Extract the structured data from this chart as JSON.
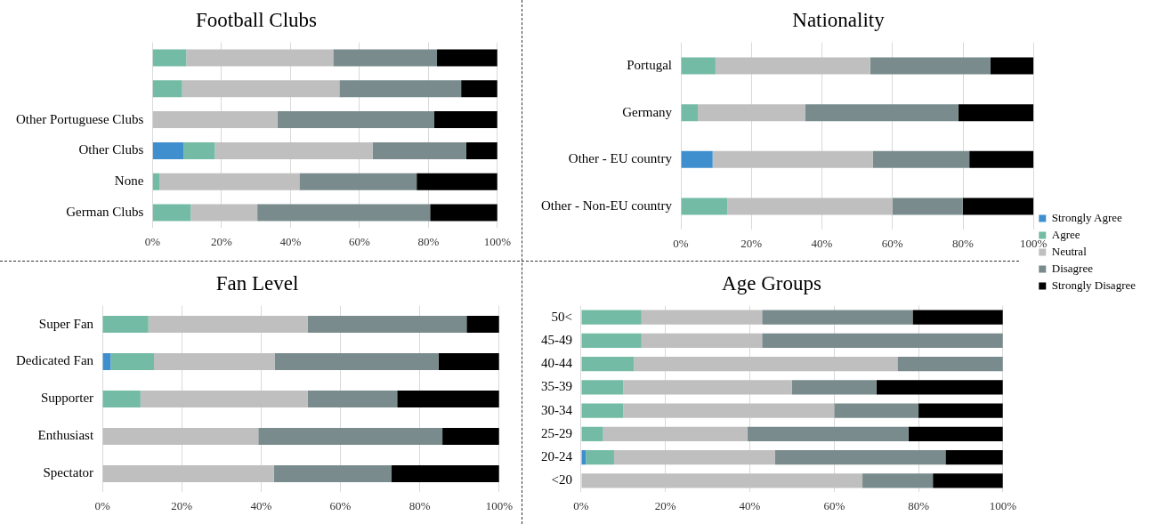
{
  "chart_data": [
    {
      "type": "bar",
      "title": "Football Clubs",
      "orientation": "horizontal",
      "stacked": true,
      "grid": "x",
      "legend": false,
      "categories": [
        null,
        null,
        "Other Portuguese Clubs",
        "Other Clubs",
        "None",
        "German Clubs"
      ],
      "xlim": [
        0,
        100
      ],
      "xticks": [
        {
          "value": 0,
          "label": "0%"
        },
        {
          "value": 20,
          "label": "20%"
        },
        {
          "value": 40,
          "label": "40%"
        },
        {
          "value": 60,
          "label": "60%"
        },
        {
          "value": 80,
          "label": "80%"
        },
        {
          "value": 100,
          "label": "100%"
        }
      ],
      "series": [
        {
          "color": "#3f8fcf",
          "values": [
            0,
            0,
            0,
            9.0,
            0,
            0
          ]
        },
        {
          "color": "#74bba5",
          "values": [
            9.8,
            8.6,
            0,
            9.1,
            2.1,
            11.1
          ]
        },
        {
          "color": "#bfbfbf",
          "values": [
            42.6,
            45.6,
            36.2,
            45.7,
            40.5,
            19.3
          ]
        },
        {
          "color": "#798b8c",
          "values": [
            30.1,
            35.3,
            45.4,
            27.2,
            34.0,
            50.1
          ]
        },
        {
          "color": "#000000",
          "values": [
            17.5,
            10.5,
            18.4,
            9.0,
            23.4,
            19.5
          ]
        }
      ]
    },
    {
      "type": "bar",
      "title": "Nationality",
      "orientation": "horizontal",
      "stacked": true,
      "grid": "x",
      "legend": "bottom right",
      "categories": [
        "Portugal",
        "Germany",
        "Other - EU country",
        "Other - Non-EU country"
      ],
      "xlim": [
        0,
        100
      ],
      "xticks": [
        {
          "value": 0,
          "label": "0%"
        },
        {
          "value": 20,
          "label": "20%"
        },
        {
          "value": 40,
          "label": "40%"
        },
        {
          "value": 60,
          "label": "60%"
        },
        {
          "value": 80,
          "label": "80%"
        },
        {
          "value": 100,
          "label": "100%"
        }
      ],
      "series": [
        {
          "name": "Strongly Agree",
          "color": "#3f8fcf",
          "values": [
            0,
            0,
            9.0,
            0
          ]
        },
        {
          "name": "Agree",
          "color": "#74bba5",
          "values": [
            9.8,
            4.8,
            0,
            13.2
          ]
        },
        {
          "name": "Neutral",
          "color": "#bfbfbf",
          "values": [
            43.9,
            30.4,
            45.4,
            46.8
          ]
        },
        {
          "name": "Disagree",
          "color": "#798b8c",
          "values": [
            34.1,
            43.5,
            27.4,
            19.9
          ]
        },
        {
          "name": "Strongly Disagree",
          "color": "#000000",
          "values": [
            12.2,
            21.3,
            18.2,
            20.1
          ]
        }
      ]
    },
    {
      "type": "bar",
      "title": "Fan Level",
      "orientation": "horizontal",
      "stacked": true,
      "grid": "x",
      "legend": false,
      "categories": [
        "Super Fan",
        "Dedicated Fan",
        "Supporter",
        "Enthusiast",
        "Spectator"
      ],
      "xlim": [
        0,
        100
      ],
      "xticks": [
        {
          "value": 0,
          "label": "0%"
        },
        {
          "value": 20,
          "label": "20%"
        },
        {
          "value": 40,
          "label": "40%"
        },
        {
          "value": 60,
          "label": "60%"
        },
        {
          "value": 80,
          "label": "80%"
        },
        {
          "value": 100,
          "label": "100%"
        }
      ],
      "series": [
        {
          "color": "#3f8fcf",
          "values": [
            0,
            2.1,
            0,
            0,
            0
          ]
        },
        {
          "color": "#74bba5",
          "values": [
            11.6,
            10.9,
            9.6,
            0,
            0
          ]
        },
        {
          "color": "#bfbfbf",
          "values": [
            40.2,
            30.4,
            42.2,
            39.3,
            43.2
          ]
        },
        {
          "color": "#798b8c",
          "values": [
            40.0,
            41.3,
            22.5,
            46.4,
            29.7
          ]
        },
        {
          "color": "#000000",
          "values": [
            8.2,
            15.3,
            25.7,
            14.3,
            27.1
          ]
        }
      ]
    },
    {
      "type": "bar",
      "title": "Age Groups",
      "orientation": "horizontal",
      "stacked": true,
      "grid": "x",
      "legend": false,
      "categories": [
        "50<",
        "45-49",
        "40-44",
        "35-39",
        "30-34",
        "25-29",
        "20-24",
        "<20"
      ],
      "xlim": [
        0,
        100
      ],
      "xticks": [
        {
          "value": 0,
          "label": "0%"
        },
        {
          "value": 20,
          "label": "20%"
        },
        {
          "value": 40,
          "label": "40%"
        },
        {
          "value": 60,
          "label": "60%"
        },
        {
          "value": 80,
          "label": "80%"
        },
        {
          "value": 100,
          "label": "100%"
        }
      ],
      "series": [
        {
          "color": "#3f8fcf",
          "values": [
            0,
            0,
            0,
            0,
            0,
            0,
            1.1,
            0
          ]
        },
        {
          "color": "#74bba5",
          "values": [
            14.3,
            14.3,
            12.5,
            10,
            10,
            5.2,
            6.7,
            0
          ]
        },
        {
          "color": "#bfbfbf",
          "values": [
            28.6,
            28.6,
            62.5,
            40,
            50,
            34.2,
            38.2,
            66.7
          ]
        },
        {
          "color": "#798b8c",
          "values": [
            35.7,
            57.1,
            25,
            20,
            20,
            38.2,
            40.4,
            16.7
          ]
        },
        {
          "color": "#000000",
          "values": [
            21.4,
            0,
            0,
            30,
            20,
            22.4,
            13.6,
            16.6
          ]
        }
      ]
    }
  ]
}
